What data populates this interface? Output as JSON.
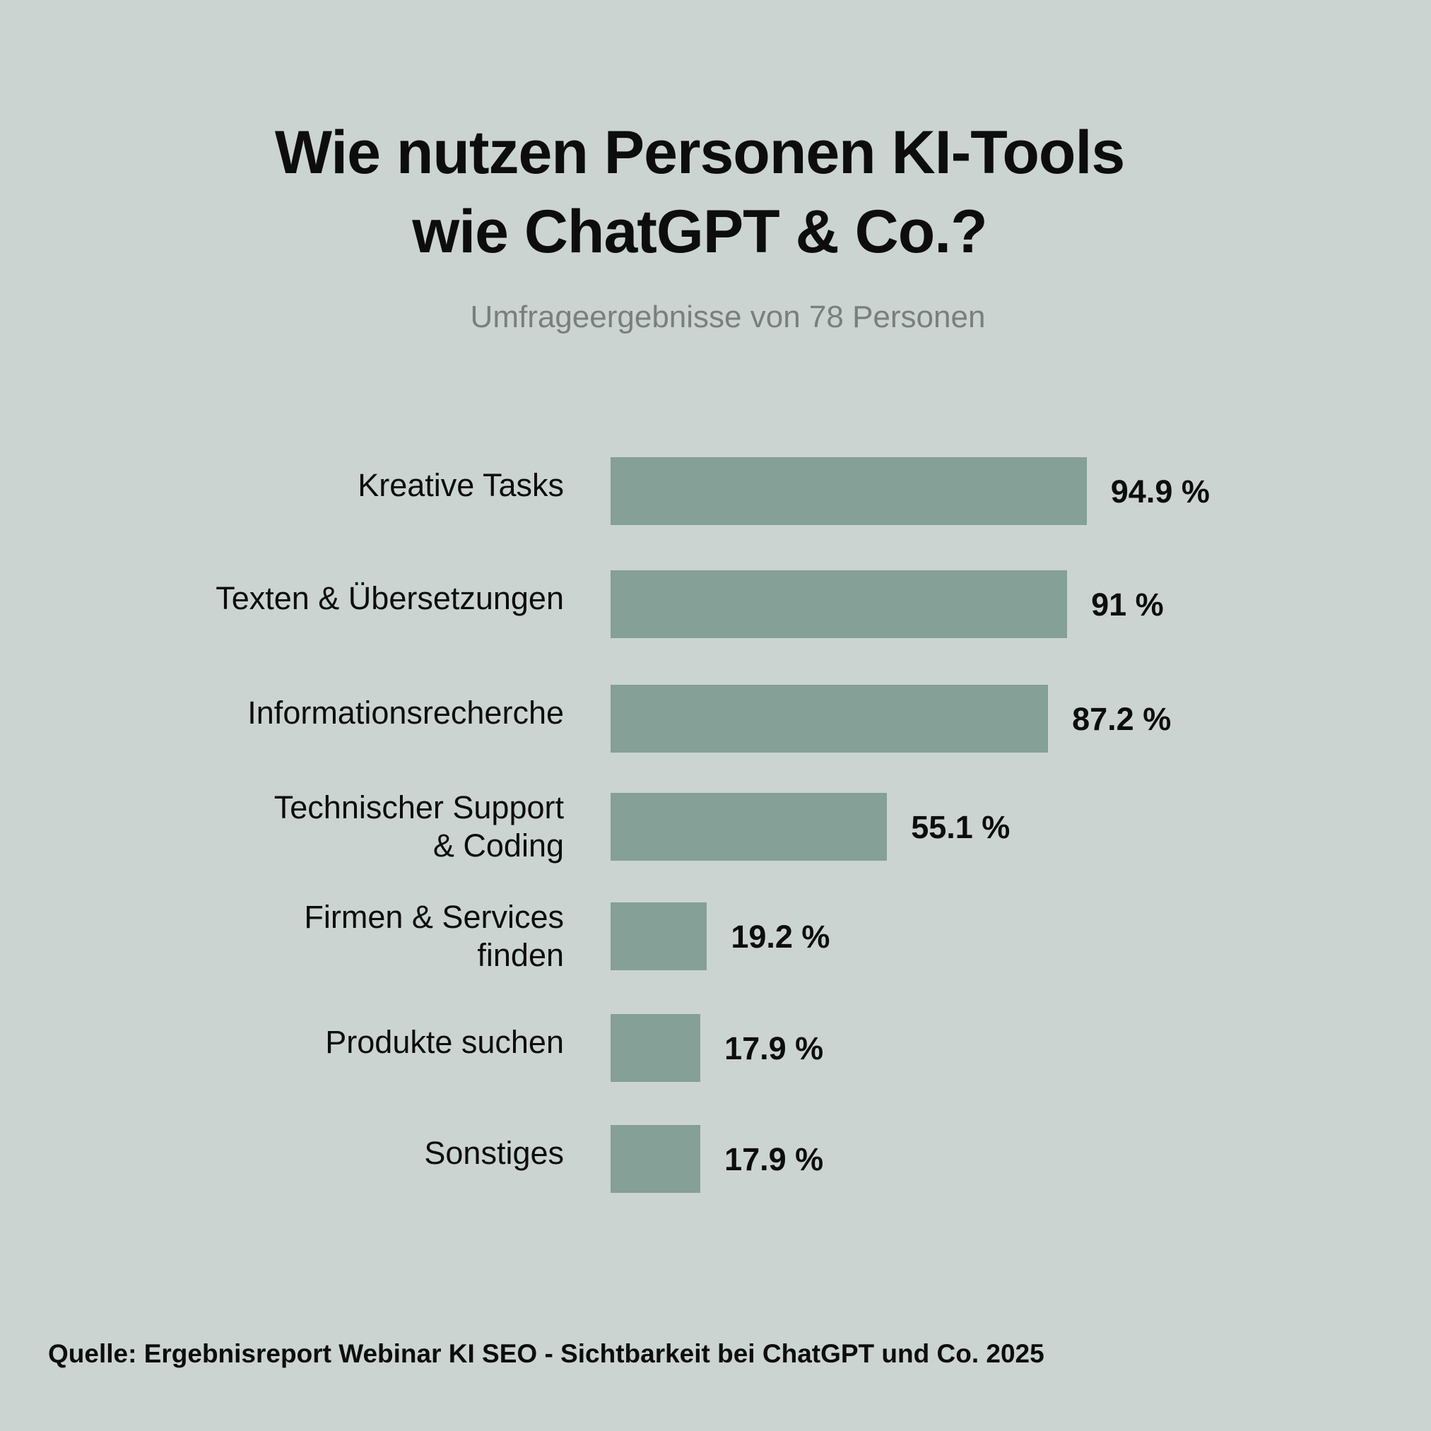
{
  "chart_data": {
    "type": "bar",
    "orientation": "horizontal",
    "title": "Wie nutzen Personen KI-Tools wie ChatGPT & Co.?",
    "title_lines": [
      "Wie nutzen Personen KI-Tools",
      "wie ChatGPT & Co.?"
    ],
    "subtitle": "Umfrageergebnisse von 78 Personen",
    "categories": [
      "Kreative Tasks",
      "Texten & Übersetzungen",
      "Informationsrecherche",
      "Technischer Support\n& Coding",
      "Firmen & Services\nfinden",
      "Produkte suchen",
      "Sonstiges"
    ],
    "values": [
      94.9,
      91,
      87.2,
      55.1,
      19.2,
      17.9,
      17.9
    ],
    "value_labels": [
      "94.9 %",
      "91 %",
      "87.2 %",
      "55.1 %",
      "19.2 %",
      "17.9 %",
      "17.9 %"
    ],
    "unit": "%",
    "xlim": [
      0,
      100
    ],
    "grid": false,
    "xlabel": "",
    "ylabel": "",
    "colors": {
      "bar": "#85a096",
      "background": "#cbd4d1"
    }
  },
  "source": "Quelle: Ergebnisreport Webinar KI SEO - Sichtbarkeit bei ChatGPT und Co. 2025"
}
